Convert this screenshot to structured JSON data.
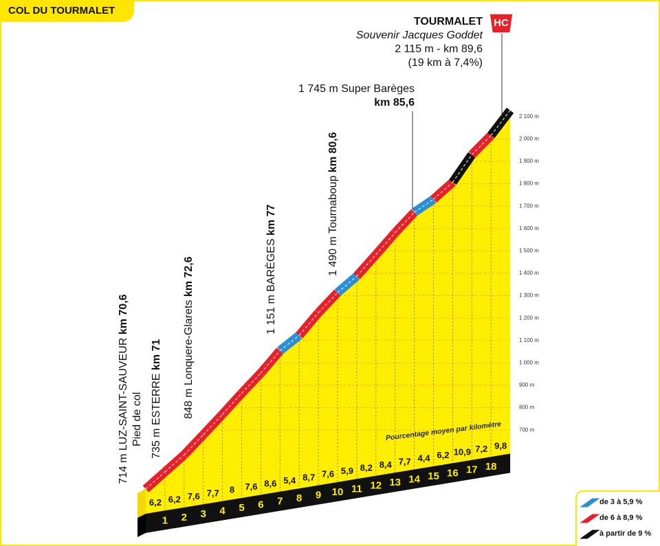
{
  "title": "COL DU TOURMALET",
  "chart_data": {
    "type": "profile",
    "summit": {
      "name": "TOURMALET",
      "subtitle": "Souvenir Jacques Goddet",
      "detail": "2 115 m - km 89,6",
      "climb": "(19 km à 7,4%)",
      "category": "HC"
    },
    "start_altitude": 714,
    "ylim": [
      700,
      2100
    ],
    "yticks": [
      {
        "value": 700,
        "label": "700 m"
      },
      {
        "value": 800,
        "label": "800 m"
      },
      {
        "value": 900,
        "label": "900 m"
      },
      {
        "value": 1000,
        "label": "1 000 m"
      },
      {
        "value": 1100,
        "label": "1 100 m"
      },
      {
        "value": 1200,
        "label": "1 200 m"
      },
      {
        "value": 1300,
        "label": "1 300 m"
      },
      {
        "value": 1400,
        "label": "1 400 m"
      },
      {
        "value": 1500,
        "label": "1 500 m"
      },
      {
        "value": 1600,
        "label": "1 600 m"
      },
      {
        "value": 1700,
        "label": "1 700 m"
      },
      {
        "value": 1800,
        "label": "1 800 m"
      },
      {
        "value": 1900,
        "label": "1 900 m"
      },
      {
        "value": 2000,
        "label": "2 000 m"
      },
      {
        "value": 2100,
        "label": "2 100 m"
      }
    ],
    "km_marks": [
      1,
      2,
      3,
      4,
      5,
      6,
      7,
      8,
      9,
      10,
      11,
      12,
      13,
      14,
      15,
      16,
      17,
      18
    ],
    "values": [
      6.2,
      6.2,
      7.6,
      7.7,
      8,
      7.6,
      8.6,
      5.4,
      8.7,
      7.6,
      5.9,
      8.2,
      8.4,
      7.7,
      4.4,
      6.2,
      10.9,
      7.2,
      9.8
    ],
    "value_labels": [
      "6,2",
      "6,2",
      "7,6",
      "7,7",
      "8",
      "7,6",
      "8,6",
      "5,4",
      "8,7",
      "7,6",
      "5,9",
      "8,2",
      "8,4",
      "7,7",
      "4,4",
      "6,2",
      "10,9",
      "7,2",
      "9,8"
    ],
    "colors": [
      "#e8202a",
      "#e8202a",
      "#e8202a",
      "#e8202a",
      "#e8202a",
      "#e8202a",
      "#e8202a",
      "#2a8fd6",
      "#e8202a",
      "#e8202a",
      "#2a8fd6",
      "#e8202a",
      "#e8202a",
      "#e8202a",
      "#2a8fd6",
      "#e8202a",
      "#111111",
      "#e8202a",
      "#111111"
    ],
    "value_caption": "Pourcentage moyen par kilomètre",
    "annotations": [
      {
        "text": "714 m LUZ-SAINT-SAUVEUR ",
        "km": "km 70,6",
        "note": "Pied de col"
      },
      {
        "text": "735 m ESTERRE ",
        "km": "km 71"
      },
      {
        "text": "848 m Lonquere-Glarets ",
        "km": "km 72,6"
      },
      {
        "text": "1 151 m BARÈGES ",
        "km": "km 77"
      },
      {
        "text": "1 490 m Tournaboup ",
        "km": "km 80,6"
      }
    ],
    "pass": {
      "text": "1 745 m Super Barèges",
      "km": "km 85,6"
    },
    "legend": [
      {
        "label": "de 3 à 5,9 %",
        "color": "#2a8fd6"
      },
      {
        "label": "de 6 à 8,9 %",
        "color": "#e8202a"
      },
      {
        "label": "à partir de 9 %",
        "color": "#111111"
      }
    ]
  }
}
